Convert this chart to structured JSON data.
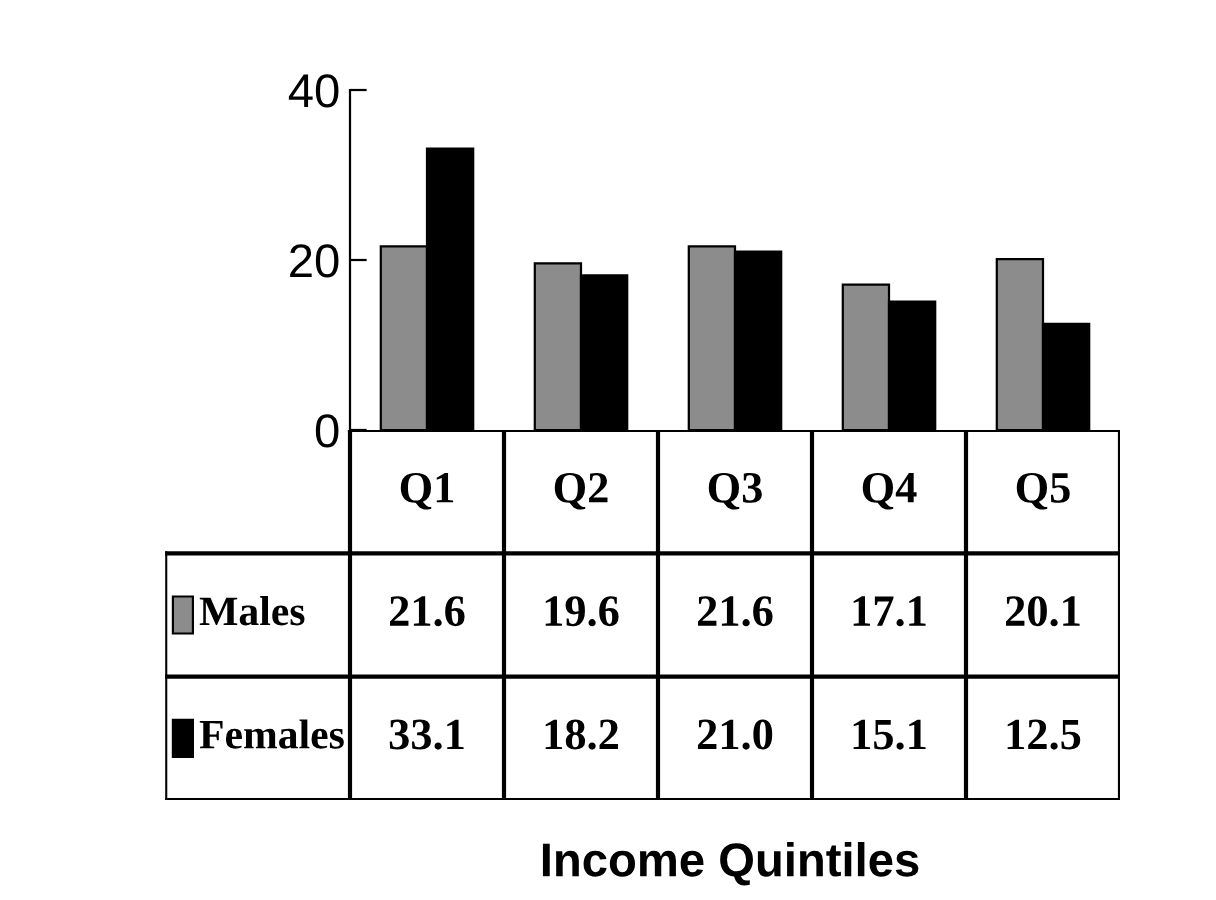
{
  "chart_data": {
    "type": "bar",
    "annotations": [
      "Income Quintiles"
    ],
    "legend": "bottom left",
    "categories": [
      "Q1",
      "Q2",
      "Q3",
      "Q4",
      "Q5"
    ],
    "series": [
      {
        "name": "Males",
        "color": "#8c8c8c",
        "values": [
          21.6,
          19.6,
          21.6,
          17.1,
          20.1
        ],
        "value_labels": [
          "21.6",
          "19.6",
          "21.6",
          "17.1",
          "20.1"
        ]
      },
      {
        "name": "Females",
        "color": "#000000",
        "values": [
          33.1,
          18.2,
          21.0,
          15.1,
          12.5
        ],
        "value_labels": [
          "33.1",
          "18.2",
          "21.0",
          "15.1",
          "12.5"
        ]
      }
    ],
    "ylim": [
      0,
      40
    ],
    "yticks": [
      0,
      20,
      40
    ]
  }
}
